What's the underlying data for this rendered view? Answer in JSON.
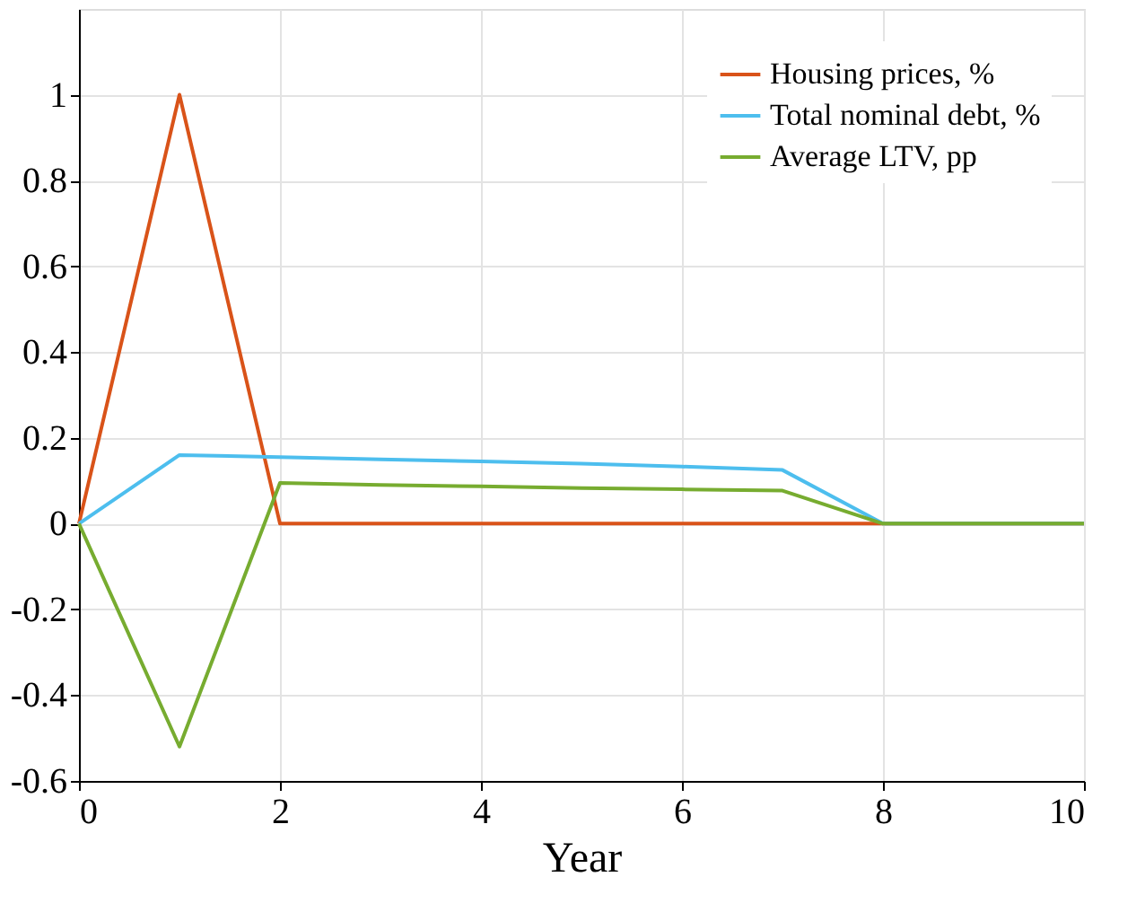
{
  "chart_data": {
    "type": "line",
    "xlabel": "Year",
    "x": [
      0,
      1,
      2,
      3,
      4,
      5,
      6,
      7,
      8,
      9,
      10
    ],
    "series": [
      {
        "name": "Housing prices, %",
        "color": "#d95319",
        "values": [
          0,
          1,
          0,
          0,
          0,
          0,
          0,
          0,
          0,
          0,
          0
        ]
      },
      {
        "name": "Total nominal debt, %",
        "color": "#4dbeee",
        "values": [
          0,
          0.16,
          0.155,
          0.15,
          0.145,
          0.14,
          0.133,
          0.125,
          0,
          0,
          0
        ]
      },
      {
        "name": "Average LTV, pp",
        "color": "#77ac30",
        "values": [
          0,
          -0.52,
          0.095,
          0.09,
          0.087,
          0.083,
          0.08,
          0.077,
          0,
          0,
          0
        ]
      }
    ],
    "xlim": [
      0,
      10
    ],
    "xticks": [
      0,
      2,
      4,
      6,
      8,
      10
    ],
    "ylim": [
      -0.6,
      1.2
    ],
    "yticks": [
      -0.6,
      -0.4,
      -0.2,
      0,
      0.2,
      0.4,
      0.6,
      0.8,
      1
    ],
    "grid": true,
    "legend": "top right",
    "marker": "none",
    "line_style": "solid"
  }
}
